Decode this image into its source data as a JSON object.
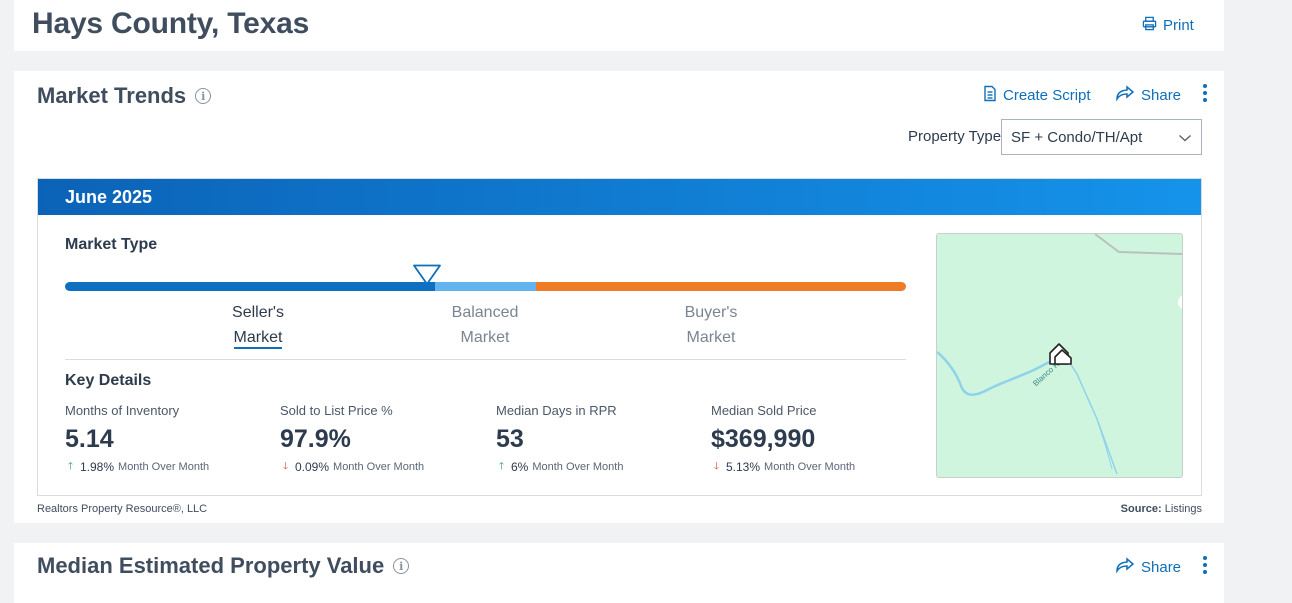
{
  "header": {
    "title": "Hays County, Texas",
    "print_label": "Print"
  },
  "market_trends": {
    "title": "Market Trends",
    "create_script_label": "Create Script",
    "share_label": "Share",
    "property_type_label": "Property Type",
    "property_type_value": "SF + Condo/TH/Apt",
    "period": "June 2025",
    "market_type_label": "Market Type",
    "market_type_position": 0.43,
    "markets": [
      {
        "line1": "Seller's",
        "line2": "Market",
        "active": true
      },
      {
        "line1": "Balanced",
        "line2": "Market",
        "active": false
      },
      {
        "line1": "Buyer's",
        "line2": "Market",
        "active": false
      }
    ],
    "key_details_label": "Key Details",
    "stats": [
      {
        "label": "Months of Inventory",
        "value": "5.14",
        "direction": "up",
        "change": "1.98%",
        "period": "Month Over Month"
      },
      {
        "label": "Sold to List Price %",
        "value": "97.9%",
        "direction": "down",
        "change": "0.09%",
        "period": "Month Over Month"
      },
      {
        "label": "Median Days in RPR",
        "value": "53",
        "direction": "up",
        "change": "6%",
        "period": "Month Over Month"
      },
      {
        "label": "Median Sold Price",
        "value": "$369,990",
        "direction": "down",
        "change": "5.13%",
        "period": "Month Over Month"
      }
    ],
    "map": {
      "river_label": "Blanco River"
    },
    "footer_left": "Realtors Property Resource®, LLC",
    "footer_source_label": "Source:",
    "footer_source_value": "Listings"
  },
  "median_value": {
    "title": "Median Estimated Property Value",
    "share_label": "Share"
  },
  "colors": {
    "accent": "#0f6fb9",
    "seller": "#0f6fc0",
    "balanced": "#61b4ee",
    "buyer": "#ee7b26",
    "up": "#2d9a62",
    "down": "#e0493a"
  },
  "icons": [
    "printer-icon",
    "info-icon",
    "document-icon",
    "share-icon",
    "kebab-menu-icon",
    "chevron-down-icon",
    "arrow-up-icon",
    "arrow-down-icon",
    "home-marker-icon"
  ]
}
